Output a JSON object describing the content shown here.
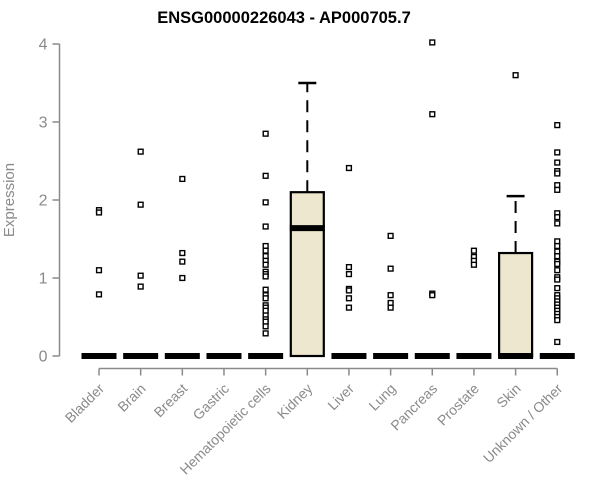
{
  "chart_data": {
    "type": "boxplot",
    "title": "ENSG00000226043 - AP000705.7",
    "ylabel": "Expression",
    "xlabel": "",
    "ylim": [
      0,
      4
    ],
    "yticks": [
      0,
      1,
      2,
      3,
      4
    ],
    "grid": false,
    "legend": "none",
    "axis_color": "#8a8a8a",
    "box_fill": "#ece7ce",
    "box_stroke": "#000000",
    "point_style": "open-square",
    "categories": [
      "Bladder",
      "Brain",
      "Breast",
      "Gastric",
      "Hematopoietic cells",
      "Kidney",
      "Liver",
      "Lung",
      "Pancreas",
      "Prostate",
      "Skin",
      "Unknown / Other"
    ],
    "series": [
      {
        "category": "Bladder",
        "q1": 0,
        "median": 0,
        "q3": 0,
        "whisker_low": 0,
        "whisker_high": 0,
        "outliers": [
          1.87,
          1.84,
          1.1,
          0.79
        ]
      },
      {
        "category": "Brain",
        "q1": 0,
        "median": 0,
        "q3": 0,
        "whisker_low": 0,
        "whisker_high": 0,
        "outliers": [
          2.62,
          1.94,
          1.03,
          0.89
        ]
      },
      {
        "category": "Breast",
        "q1": 0,
        "median": 0,
        "q3": 0,
        "whisker_low": 0,
        "whisker_high": 0,
        "outliers": [
          2.27,
          1.32,
          1.21,
          1.0
        ]
      },
      {
        "category": "Gastric",
        "q1": 0,
        "median": 0,
        "q3": 0,
        "whisker_low": 0,
        "whisker_high": 0,
        "outliers": []
      },
      {
        "category": "Hematopoietic cells",
        "q1": 0,
        "median": 0,
        "q3": 0,
        "whisker_low": 0,
        "whisker_high": 0,
        "outliers": [
          2.85,
          2.31,
          1.97,
          1.66,
          1.41,
          1.35,
          1.28,
          1.22,
          1.17,
          1.08,
          1.05,
          1.02,
          0.85,
          0.78,
          0.74,
          0.65,
          0.62,
          0.58,
          0.52,
          0.47,
          0.44,
          0.38,
          0.29
        ]
      },
      {
        "category": "Kidney",
        "q1": 0,
        "median": 1.64,
        "q3": 2.1,
        "whisker_low": 0,
        "whisker_high": 3.5,
        "outliers": []
      },
      {
        "category": "Liver",
        "q1": 0,
        "median": 0,
        "q3": 0,
        "whisker_low": 0,
        "whisker_high": 0,
        "outliers": [
          2.41,
          1.14,
          1.05,
          0.86,
          0.84,
          0.74,
          0.62
        ]
      },
      {
        "category": "Lung",
        "q1": 0,
        "median": 0,
        "q3": 0,
        "whisker_low": 0,
        "whisker_high": 0,
        "outliers": [
          1.54,
          1.12,
          0.78,
          0.68,
          0.62
        ]
      },
      {
        "category": "Pancreas",
        "q1": 0,
        "median": 0,
        "q3": 0,
        "whisker_low": 0,
        "whisker_high": 0,
        "outliers": [
          4.02,
          3.1,
          0.8,
          0.78
        ]
      },
      {
        "category": "Prostate",
        "q1": 0,
        "median": 0,
        "q3": 0,
        "whisker_low": 0,
        "whisker_high": 0,
        "outliers": [
          1.35,
          1.27,
          1.22,
          1.17
        ]
      },
      {
        "category": "Skin",
        "q1": 0,
        "median": 0,
        "q3": 1.32,
        "whisker_low": 0,
        "whisker_high": 2.05,
        "outliers": [
          3.6
        ]
      },
      {
        "category": "Unknown / Other",
        "q1": 0,
        "median": 0,
        "q3": 0,
        "whisker_low": 0,
        "whisker_high": 0,
        "outliers": [
          2.96,
          2.61,
          2.48,
          2.37,
          2.34,
          2.19,
          2.13,
          1.83,
          1.78,
          1.7,
          1.47,
          1.41,
          1.34,
          1.28,
          1.21,
          1.18,
          1.1,
          1.01,
          0.98,
          0.87,
          0.78,
          0.74,
          0.7,
          0.66,
          0.62,
          0.58,
          0.54,
          0.5,
          0.46,
          0.18
        ]
      }
    ]
  }
}
